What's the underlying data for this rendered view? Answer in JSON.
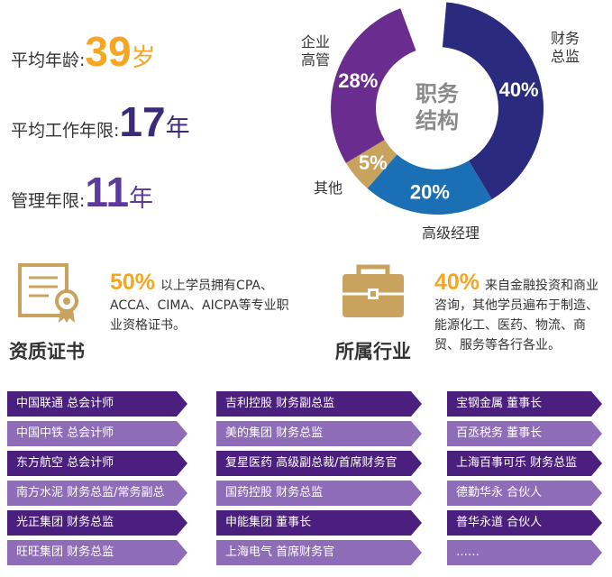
{
  "stats": [
    {
      "label": "平均年龄:",
      "value": "39",
      "unit": "岁"
    },
    {
      "label": "平均工作年限:",
      "value": "17",
      "unit": "年"
    },
    {
      "label": "管理年限:",
      "value": "11",
      "unit": "年"
    }
  ],
  "chart_data": {
    "type": "pie",
    "title": "职务结构",
    "slices": [
      {
        "name": "财务总监",
        "value": 40,
        "label": "40%",
        "color": "#2a2a7e"
      },
      {
        "name": "高级经理",
        "value": 20,
        "label": "20%",
        "color": "#1b6fb5"
      },
      {
        "name": "其他",
        "value": 5,
        "label": "5%",
        "color": "#c9a35e"
      },
      {
        "name": "企业高管",
        "value": 28,
        "label": "28%",
        "color": "#6a2d8f"
      }
    ],
    "outer_labels": [
      {
        "lines": [
          "财务",
          "总监"
        ]
      },
      {
        "lines": [
          "高级经理"
        ]
      },
      {
        "lines": [
          "其他"
        ]
      },
      {
        "lines": [
          "企业",
          "高管"
        ]
      }
    ]
  },
  "features": {
    "qualification": {
      "title": "资质证书",
      "pct": "50%",
      "text": "以上学员拥有CPA、ACCA、CIMA、AICPA等专业职业资格证书。",
      "icon": "certificate-icon"
    },
    "industry": {
      "title": "所属行业",
      "pct": "40%",
      "text": "来自金融投资和商业咨询，其他学员遍布于制造、能源化工、医药、物流、商贸、服务等各行各业。",
      "icon": "briefcase-icon"
    }
  },
  "columns": [
    [
      "中国联通 总会计师",
      "中国中铁 总会计师",
      "东方航空 总会计师",
      "南方水泥 财务总监/常务副总",
      "光正集团 财务总监",
      "旺旺集团 财务总监"
    ],
    [
      "吉利控股 财务副总监",
      "美的集团 财务总监",
      "复星医药 高级副总裁/首席财务官",
      "国药控股 财务总监",
      "申能集团 董事长",
      "上海电气 首席财务官"
    ],
    [
      "宝钢金属 董事长",
      "百丞税务 董事长",
      "上海百事可乐 财务总监",
      "德勤华永 合伙人",
      "普华永道 合伙人",
      "……"
    ]
  ],
  "colors": {
    "orange": "#f5a623",
    "navy": "#3b2a7a",
    "tag_dark": "#4a1f7e",
    "tag_light": "#8e6cb8"
  }
}
